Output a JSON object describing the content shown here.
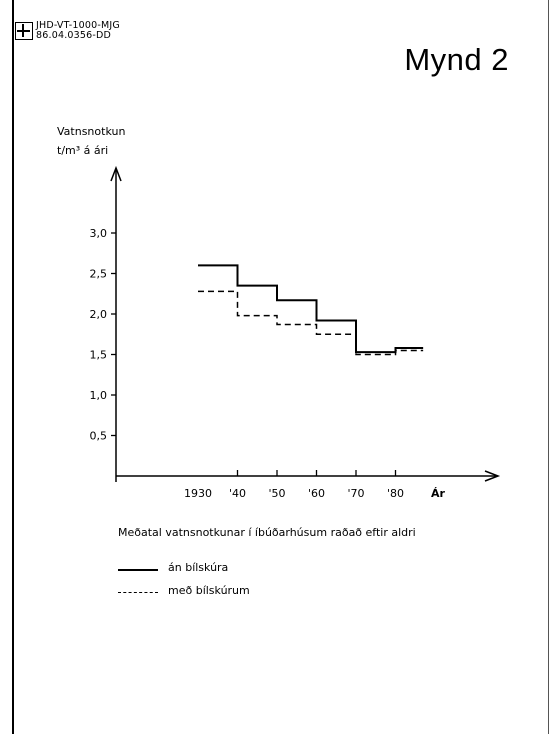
{
  "header": {
    "ref_line1": "JHD-VT-1000-MJG",
    "ref_line2": "86.04.0356-DD",
    "figure_title": "Mynd 2"
  },
  "chart_data": {
    "type": "line",
    "step": true,
    "ylabel_line1": "Vatnsnotkun",
    "ylabel_line2": "t/m³ á ári",
    "xlabel": "Ár",
    "caption": "Meðatal vatnsnotkunar í íbúðarhúsum raðað eftir aldri",
    "x_ticks": [
      "1930",
      "'40",
      "'50",
      "'60",
      "'70",
      "'80"
    ],
    "y_ticks": [
      "0,5",
      "1,0",
      "1,5",
      "2,0",
      "2,5",
      "3,0"
    ],
    "ylim": [
      0,
      3.5
    ],
    "x_range": [
      1910,
      2000
    ],
    "series": [
      {
        "name": "án bílskúra",
        "style": "solid",
        "steps": [
          {
            "from": 1930,
            "to": 1940,
            "value": 2.6
          },
          {
            "from": 1940,
            "to": 1950,
            "value": 2.35
          },
          {
            "from": 1950,
            "to": 1960,
            "value": 2.17
          },
          {
            "from": 1960,
            "to": 1970,
            "value": 1.92
          },
          {
            "from": 1970,
            "to": 1980,
            "value": 1.53
          },
          {
            "from": 1980,
            "to": 1987,
            "value": 1.58
          }
        ]
      },
      {
        "name": "með bílskúrum",
        "style": "dashed",
        "steps": [
          {
            "from": 1930,
            "to": 1940,
            "value": 2.28
          },
          {
            "from": 1940,
            "to": 1950,
            "value": 1.98
          },
          {
            "from": 1950,
            "to": 1960,
            "value": 1.87
          },
          {
            "from": 1960,
            "to": 1970,
            "value": 1.75
          },
          {
            "from": 1970,
            "to": 1980,
            "value": 1.5
          },
          {
            "from": 1980,
            "to": 1987,
            "value": 1.55
          }
        ]
      }
    ],
    "grid": false,
    "legend_position": "bottom-left"
  }
}
